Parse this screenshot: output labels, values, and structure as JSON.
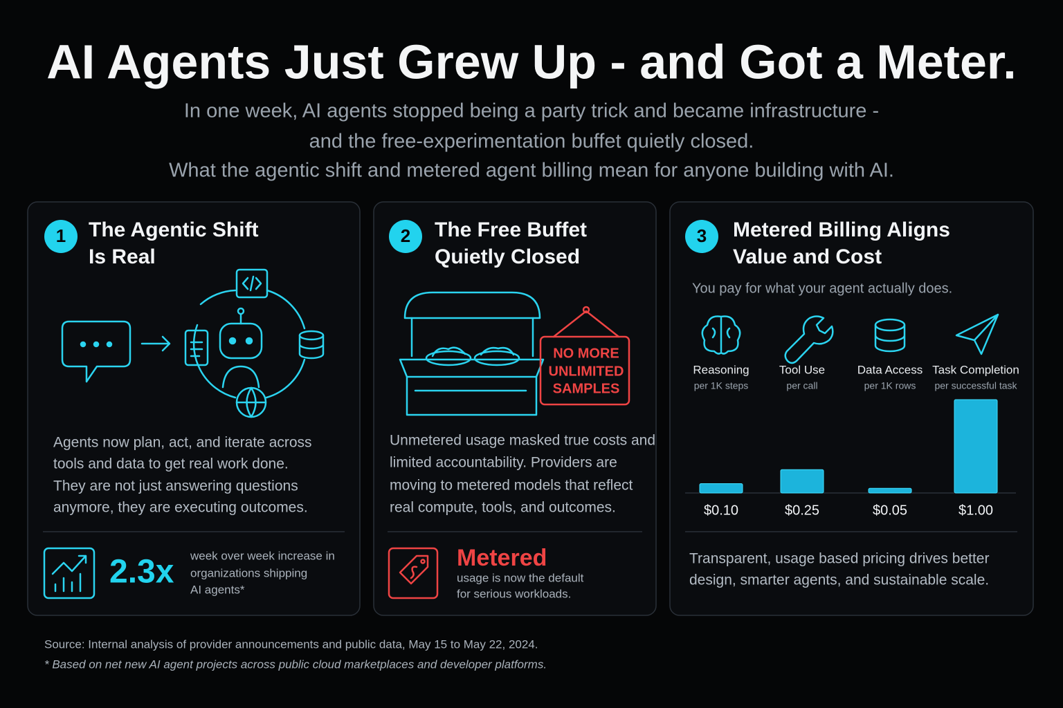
{
  "header": {
    "title": "AI Agents Just Grew Up - and Got a Meter.",
    "subtitle_lines": [
      "In one week, AI agents stopped being a party trick and became infrastructure -",
      "and the free-experimentation buffet quietly closed.",
      "What the agentic shift and metered agent billing mean for anyone building with AI."
    ]
  },
  "panels": [
    {
      "number": "1",
      "title_lines": [
        "The Agentic Shift",
        "Is Real"
      ],
      "body_lines": [
        "Agents now plan, act, and iterate across",
        "tools and data to get real work done.",
        "They are not just answering questions",
        "anymore, they are executing outcomes."
      ],
      "stat": "2.3x",
      "stat_note_lines": [
        "week over week increase in",
        "organizations shipping",
        "AI agents*"
      ]
    },
    {
      "number": "2",
      "title_lines": [
        "The Free Buffet",
        "Quietly Closed"
      ],
      "sign_lines": [
        "NO MORE",
        "UNLIMITED",
        "SAMPLES"
      ],
      "body_lines": [
        "Unmetered usage masked true costs and",
        "limited accountability. Providers are",
        "moving to metered models that reflect",
        "real compute, tools, and outcomes."
      ],
      "stat": "Metered",
      "stat_note_lines": [
        "usage is now the default",
        "for serious workloads."
      ]
    },
    {
      "number": "3",
      "title_lines": [
        "Metered Billing Aligns",
        "Value and Cost"
      ],
      "intro": "You pay for what your agent actually does.",
      "body_lines": [
        "Transparent, usage based pricing drives better",
        "design, smarter agents, and sustainable scale."
      ]
    }
  ],
  "chart_data": {
    "type": "bar",
    "categories": [
      "Reasoning",
      "Tool Use",
      "Data Access",
      "Task Completion"
    ],
    "category_notes": [
      "per 1K steps",
      "per call",
      "per 1K rows",
      "per successful task"
    ],
    "values": [
      0.1,
      0.25,
      0.05,
      1.0
    ],
    "value_labels": [
      "$0.10",
      "$0.25",
      "$0.05",
      "$1.00"
    ],
    "color": "#1cb4dc"
  },
  "footer": {
    "source": "Source: Internal analysis of provider announcements and public data, May 15 to May 22, 2024.",
    "note": "* Based on net new AI agent projects across public cloud marketplaces and developer platforms."
  }
}
